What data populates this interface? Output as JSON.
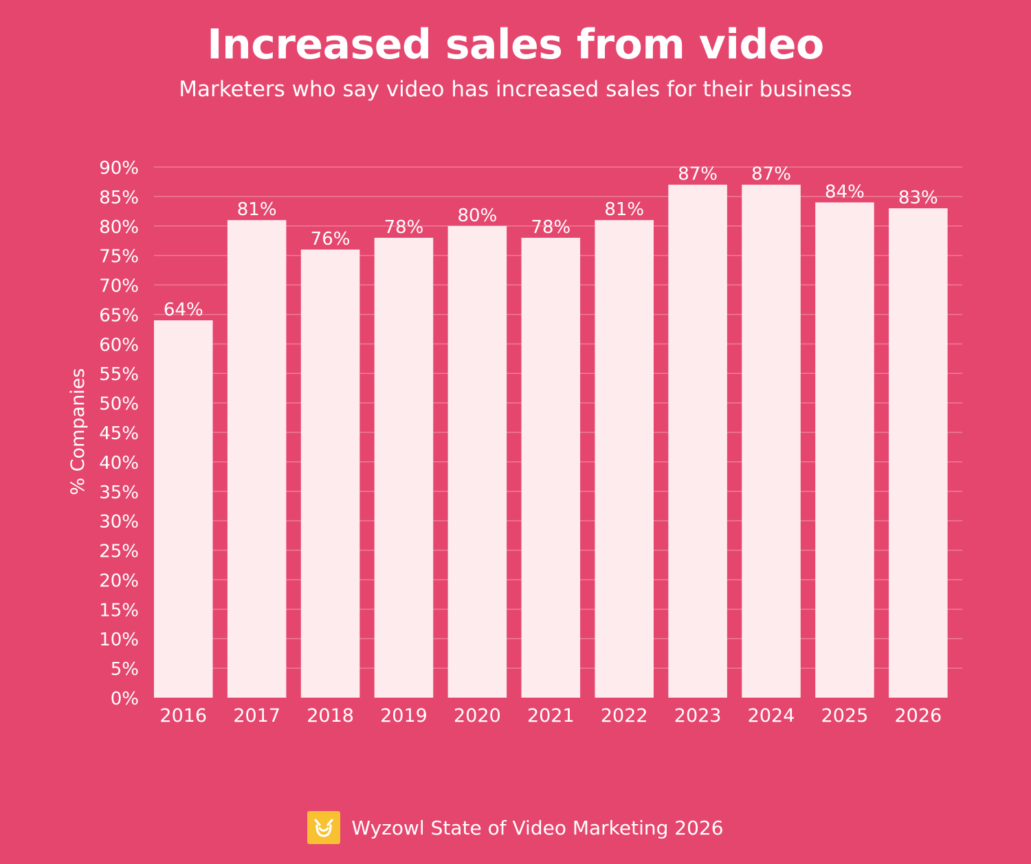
{
  "chart_data": {
    "type": "bar",
    "title": "Increased sales from video",
    "subtitle": "Marketers who say video has increased sales for their business",
    "xlabel": "",
    "ylabel": "% Companies",
    "categories": [
      "2016",
      "2017",
      "2018",
      "2019",
      "2020",
      "2021",
      "2022",
      "2023",
      "2024",
      "2025",
      "2026"
    ],
    "values": [
      64,
      81,
      76,
      78,
      80,
      78,
      81,
      87,
      87,
      84,
      83
    ],
    "value_labels": [
      "64%",
      "81%",
      "76%",
      "78%",
      "80%",
      "78%",
      "81%",
      "87%",
      "87%",
      "84%",
      "83%"
    ],
    "ylim": [
      0,
      90
    ],
    "yticks": [
      0,
      5,
      10,
      15,
      20,
      25,
      30,
      35,
      40,
      45,
      50,
      55,
      60,
      65,
      70,
      75,
      80,
      85,
      90
    ],
    "ytick_labels": [
      "0%",
      "5%",
      "10%",
      "15%",
      "20%",
      "25%",
      "30%",
      "35%",
      "40%",
      "45%",
      "50%",
      "55%",
      "60%",
      "65%",
      "70%",
      "75%",
      "80%",
      "85%",
      "90%"
    ],
    "grid": true,
    "legend": "none"
  },
  "footer": {
    "source": "Wyzowl State of Video Marketing 2026",
    "logo_icon": "owl-logo-icon"
  },
  "colors": {
    "background": "#e5466e",
    "bar": "#fdebee",
    "grid": "#ee7c98",
    "text": "#ffffff",
    "logo": "#f8c132"
  }
}
